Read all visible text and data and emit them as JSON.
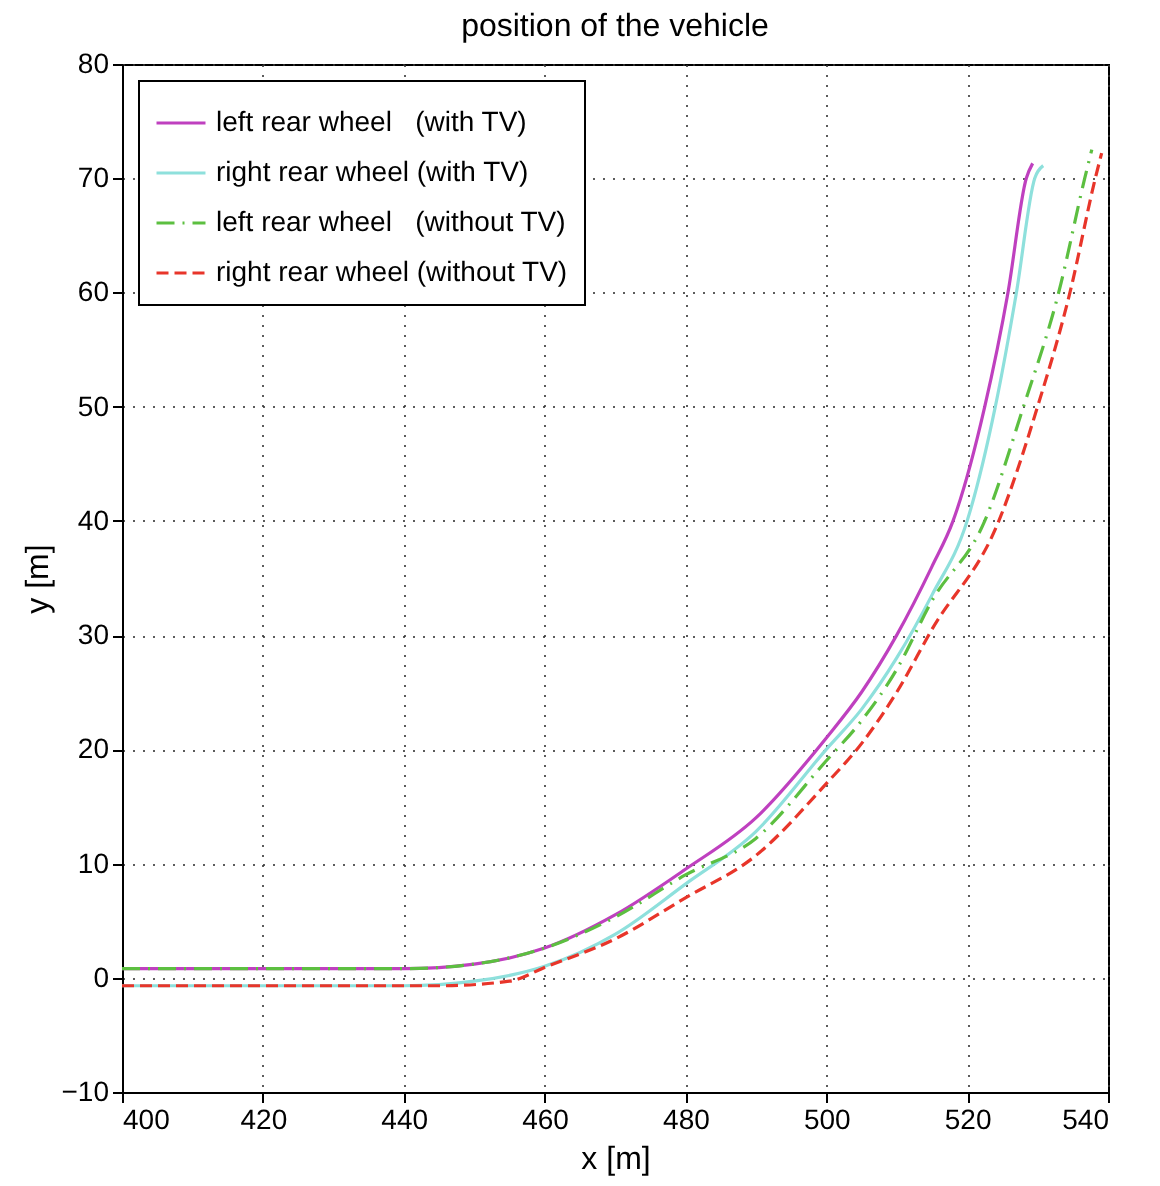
{
  "chart_data": {
    "type": "line",
    "title": "position of the vehicle",
    "xlabel": "x [m]",
    "ylabel": "y [m]",
    "xlim": [
      400,
      540
    ],
    "xticks": [
      400,
      420,
      440,
      460,
      480,
      500,
      520,
      540
    ],
    "ylim": [
      -10,
      80
    ],
    "yticks": [
      -10,
      0,
      10,
      20,
      30,
      40,
      50,
      60,
      70,
      80
    ],
    "grid": true,
    "legend": "top left",
    "series": [
      {
        "name": "left rear wheel   (with TV)",
        "color": "#bf40bf",
        "line_style": "solid",
        "x": [
          400,
          440,
          450,
          460,
          470,
          480,
          490,
          500,
          505,
          510,
          515,
          518,
          522.5,
          525.8,
          528.4,
          529.3
        ],
        "values": [
          0.8,
          0.8,
          1.2,
          2.6,
          5.5,
          9.5,
          14,
          21,
          25,
          30,
          36,
          40,
          50,
          60,
          70,
          71.3
        ]
      },
      {
        "name": "right rear wheel (with TV)",
        "color": "#8ee0dc",
        "line_style": "solid",
        "x": [
          400,
          440,
          450,
          460,
          470,
          480,
          490,
          500,
          505,
          510,
          515,
          520,
          524,
          527,
          529.6,
          530.8
        ],
        "values": [
          -0.7,
          -0.7,
          -0.3,
          1,
          3.8,
          8.2,
          12.8,
          20,
          23.5,
          28,
          33.5,
          40,
          50,
          60,
          70,
          71.1
        ]
      },
      {
        "name": "left rear wheel   (without TV)",
        "color": "#5cbf40",
        "line_style": "dashdot",
        "x": [
          400,
          440,
          450,
          460,
          470,
          480,
          490,
          500,
          505,
          510,
          515,
          522.5,
          528,
          533,
          536.7,
          537.7
        ],
        "values": [
          0.8,
          0.8,
          1.2,
          2.6,
          5.3,
          9,
          12.2,
          19,
          22.5,
          27,
          33,
          40,
          50,
          60,
          70,
          72.5
        ]
      },
      {
        "name": "right rear wheel (without TV)",
        "color": "#e8352a",
        "line_style": "dashed",
        "x": [
          400,
          445,
          455,
          460,
          470,
          480,
          490,
          500,
          505,
          510,
          515,
          524.5,
          530,
          534.6,
          538.2,
          539.1
        ],
        "values": [
          -0.7,
          -0.7,
          -0.3,
          0.9,
          3.4,
          7,
          10.7,
          17,
          20.5,
          25,
          30.5,
          40,
          50,
          60,
          70,
          72.2
        ]
      }
    ]
  }
}
